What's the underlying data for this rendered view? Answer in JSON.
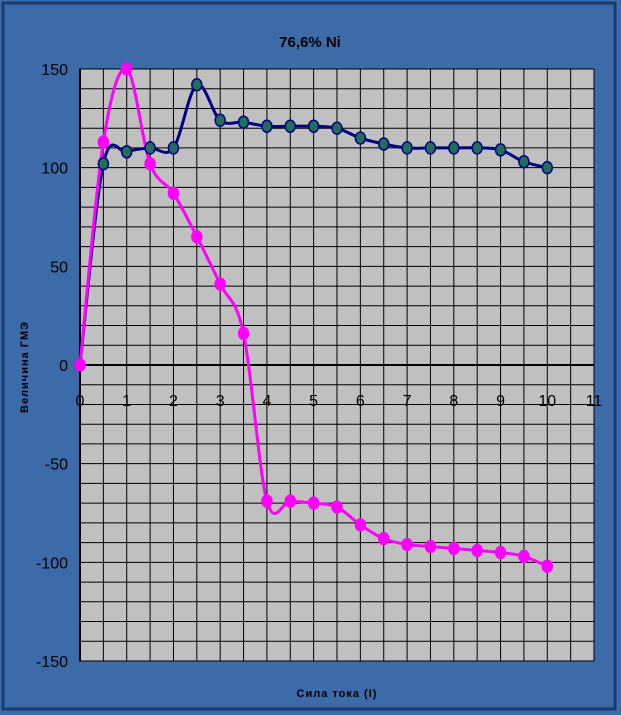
{
  "chart_data": {
    "type": "line",
    "title": "76,6% Ni",
    "xlabel": "Сила тока (I)",
    "ylabel": "Величина ГМЭ",
    "xlim": [
      0,
      11
    ],
    "ylim": [
      -150,
      150
    ],
    "x_ticks": [
      0,
      1,
      2,
      3,
      4,
      5,
      6,
      7,
      8,
      9,
      10,
      11
    ],
    "y_ticks": [
      150,
      100,
      50,
      0,
      -50,
      -100,
      -150
    ],
    "grid": true,
    "legend": "none",
    "series": [
      {
        "color": "#000080",
        "marker_color": "#1f6f5a",
        "x": [
          0,
          0.5,
          1,
          1.5,
          2,
          2.5,
          3,
          3.5,
          4,
          4.5,
          5,
          5.5,
          6,
          6.5,
          7,
          7.5,
          8,
          8.5,
          9,
          9.5,
          10
        ],
        "y": [
          0,
          102,
          108,
          110,
          110,
          142,
          124,
          123,
          121,
          121,
          121,
          120,
          115,
          112,
          110,
          110,
          110,
          110,
          109,
          103,
          100
        ]
      },
      {
        "color": "#ff00ff",
        "marker_color": "#ff00ff",
        "x": [
          0,
          0.5,
          1,
          1.5,
          2,
          2.5,
          3,
          3.5,
          4,
          4.5,
          5,
          5.5,
          6,
          6.5,
          7,
          7.5,
          8,
          8.5,
          9,
          9.5,
          10
        ],
        "y": [
          0,
          113,
          150,
          102,
          87,
          65,
          41,
          16,
          -69,
          -69,
          -70,
          -72,
          -81,
          -88,
          -91,
          -92,
          -93,
          -94,
          -95,
          -97,
          -102
        ]
      }
    ]
  }
}
